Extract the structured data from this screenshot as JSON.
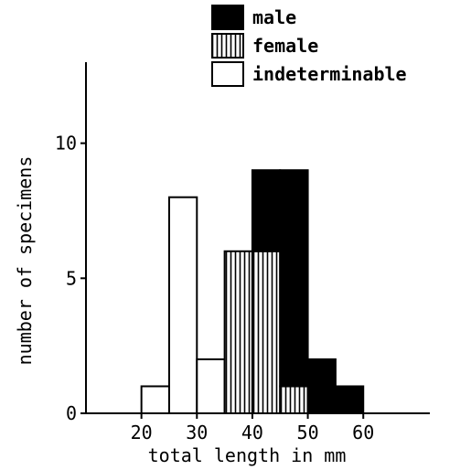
{
  "chart_data": {
    "type": "bar",
    "stacked": true,
    "title": "",
    "xlabel": "total length in mm",
    "ylabel": "number of specimens",
    "xlim": [
      10,
      72
    ],
    "ylim": [
      0,
      13
    ],
    "x_ticks": [
      20,
      30,
      40,
      50,
      60
    ],
    "y_ticks": [
      0,
      5,
      10
    ],
    "bin_width": 5,
    "bins": [
      {
        "start": 20,
        "end": 25
      },
      {
        "start": 25,
        "end": 30
      },
      {
        "start": 30,
        "end": 35
      },
      {
        "start": 35,
        "end": 40
      },
      {
        "start": 40,
        "end": 45
      },
      {
        "start": 45,
        "end": 50
      },
      {
        "start": 50,
        "end": 55
      },
      {
        "start": 55,
        "end": 60
      }
    ],
    "series": [
      {
        "name": "indeterminable",
        "values": [
          1,
          8,
          2,
          0,
          0,
          0,
          0,
          0
        ],
        "pattern": "white"
      },
      {
        "name": "female",
        "values": [
          0,
          0,
          0,
          6,
          6,
          1,
          0,
          0
        ],
        "pattern": "vertical-hatch"
      },
      {
        "name": "male",
        "values": [
          0,
          0,
          0,
          0,
          3,
          8,
          2,
          1
        ],
        "pattern": "solid-black"
      }
    ],
    "legend": {
      "placement": "top",
      "items": [
        {
          "label": "male",
          "pattern": "solid-black"
        },
        {
          "label": "female",
          "pattern": "vertical-hatch"
        },
        {
          "label": "indeterminable",
          "pattern": "white"
        }
      ]
    },
    "grid": false,
    "colors": {
      "ink": "#000000",
      "paper": "#ffffff"
    }
  }
}
